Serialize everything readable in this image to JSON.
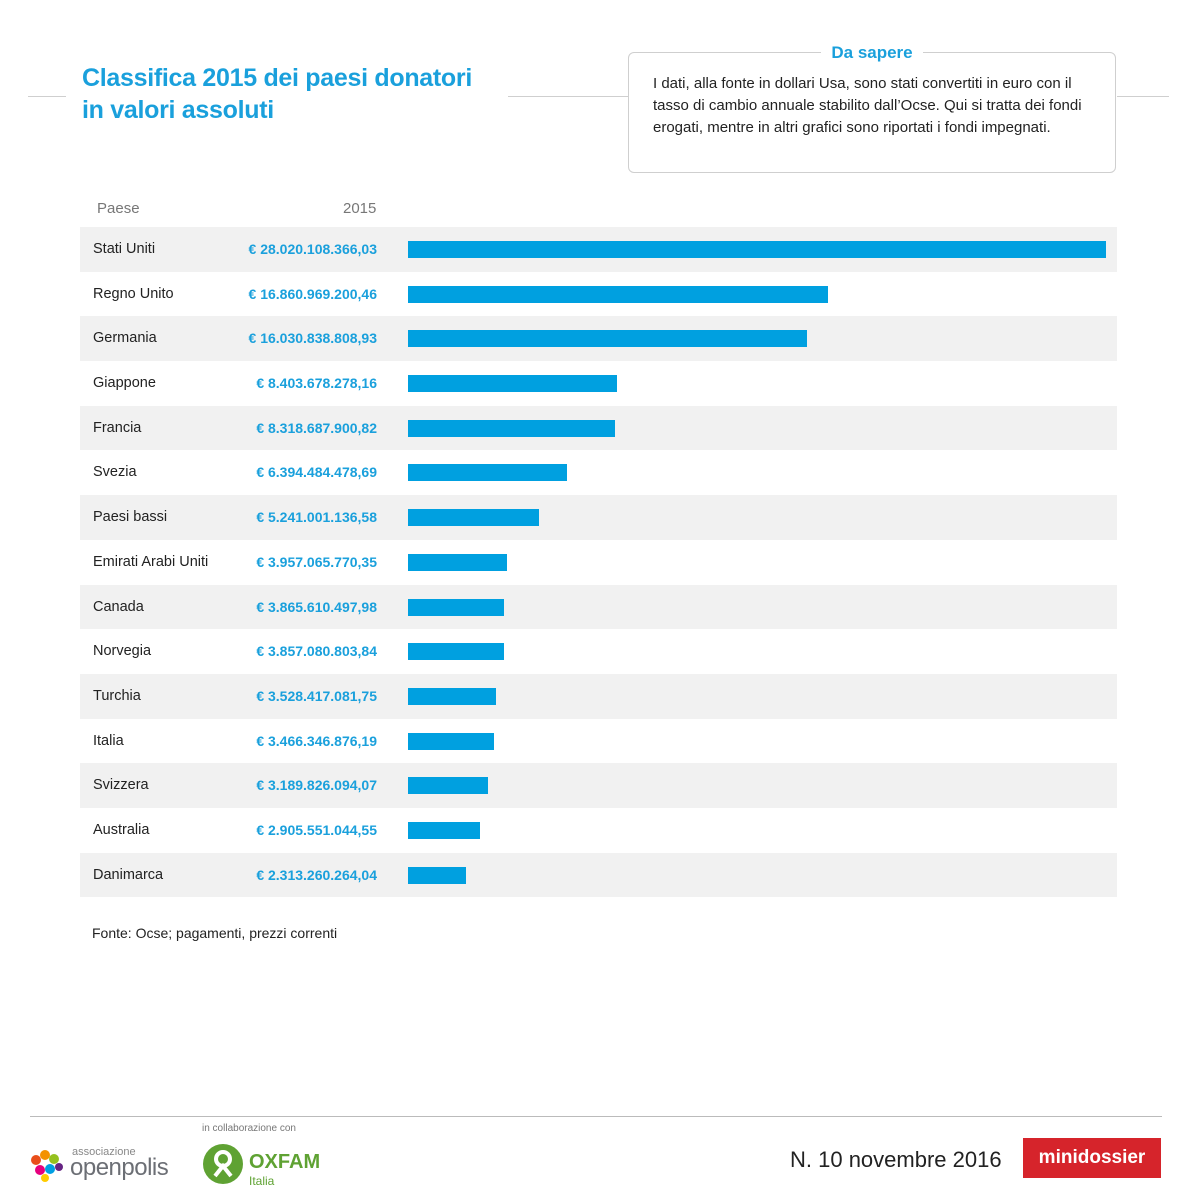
{
  "header": {
    "title": "Classifica 2015 dei paesi donatori in valori assoluti"
  },
  "info_box": {
    "heading": "Da sapere",
    "text": "I dati, alla fonte in dollari Usa, sono stati convertiti in euro con il tasso di cambio annuale stabilito dall’Ocse. Qui si tratta dei fondi erogati, mentre in altri grafici sono riportati i fondi impegnati."
  },
  "table": {
    "col_country": "Paese",
    "col_year": "2015"
  },
  "chart_data": {
    "type": "bar",
    "orientation": "horizontal",
    "title": "Classifica 2015 dei paesi donatori in valori assoluti",
    "series": [
      {
        "name": "2015",
        "color": "#00a0e0"
      }
    ],
    "rows": [
      {
        "country": "Stati Uniti",
        "label": "€ 28.020.108.366,03",
        "value": 28020108366.03
      },
      {
        "country": "Regno Unito",
        "label": "€ 16.860.969.200,46",
        "value": 16860969200.46
      },
      {
        "country": "Germania",
        "label": "€ 16.030.838.808,93",
        "value": 16030838808.93
      },
      {
        "country": "Giappone",
        "label": "€ 8.403.678.278,16",
        "value": 8403678278.16
      },
      {
        "country": "Francia",
        "label": "€ 8.318.687.900,82",
        "value": 8318687900.82
      },
      {
        "country": "Svezia",
        "label": "€ 6.394.484.478,69",
        "value": 6394484478.69
      },
      {
        "country": "Paesi bassi",
        "label": "€ 5.241.001.136,58",
        "value": 5241001136.58
      },
      {
        "country": "Emirati Arabi Uniti",
        "label": "€ 3.957.065.770,35",
        "value": 3957065770.35
      },
      {
        "country": "Canada",
        "label": "€ 3.865.610.497,98",
        "value": 3865610497.98
      },
      {
        "country": "Norvegia",
        "label": "€ 3.857.080.803,84",
        "value": 3857080803.84
      },
      {
        "country": "Turchia",
        "label": "€ 3.528.417.081,75",
        "value": 3528417081.75
      },
      {
        "country": "Italia",
        "label": "€ 3.466.346.876,19",
        "value": 3466346876.19
      },
      {
        "country": "Svizzera",
        "label": "€ 3.189.826.094,07",
        "value": 3189826094.07
      },
      {
        "country": "Australia",
        "label": "€ 2.905.551.044,55",
        "value": 2905551044.55
      },
      {
        "country": "Danimarca",
        "label": "€ 2.313.260.264,04",
        "value": 2313260264.04
      }
    ],
    "xlim": [
      0,
      28020108366.03
    ]
  },
  "source": "Fonte: Ocse; pagamenti, prezzi correnti",
  "footer": {
    "openpolis_prefix": "associazione",
    "openpolis_name": "openpolis",
    "collab_text": "in collaborazione con",
    "oxfam_name": "OXFAM",
    "oxfam_sub": "Italia",
    "issue": "N. 10  novembre 2016",
    "brand": "minidossier"
  },
  "colors": {
    "accent": "#1aa0dc",
    "bar": "#00a0e0",
    "row_shade": "#f1f1f1",
    "brand_red": "#d6242b",
    "oxfam_green": "#5fa233"
  }
}
